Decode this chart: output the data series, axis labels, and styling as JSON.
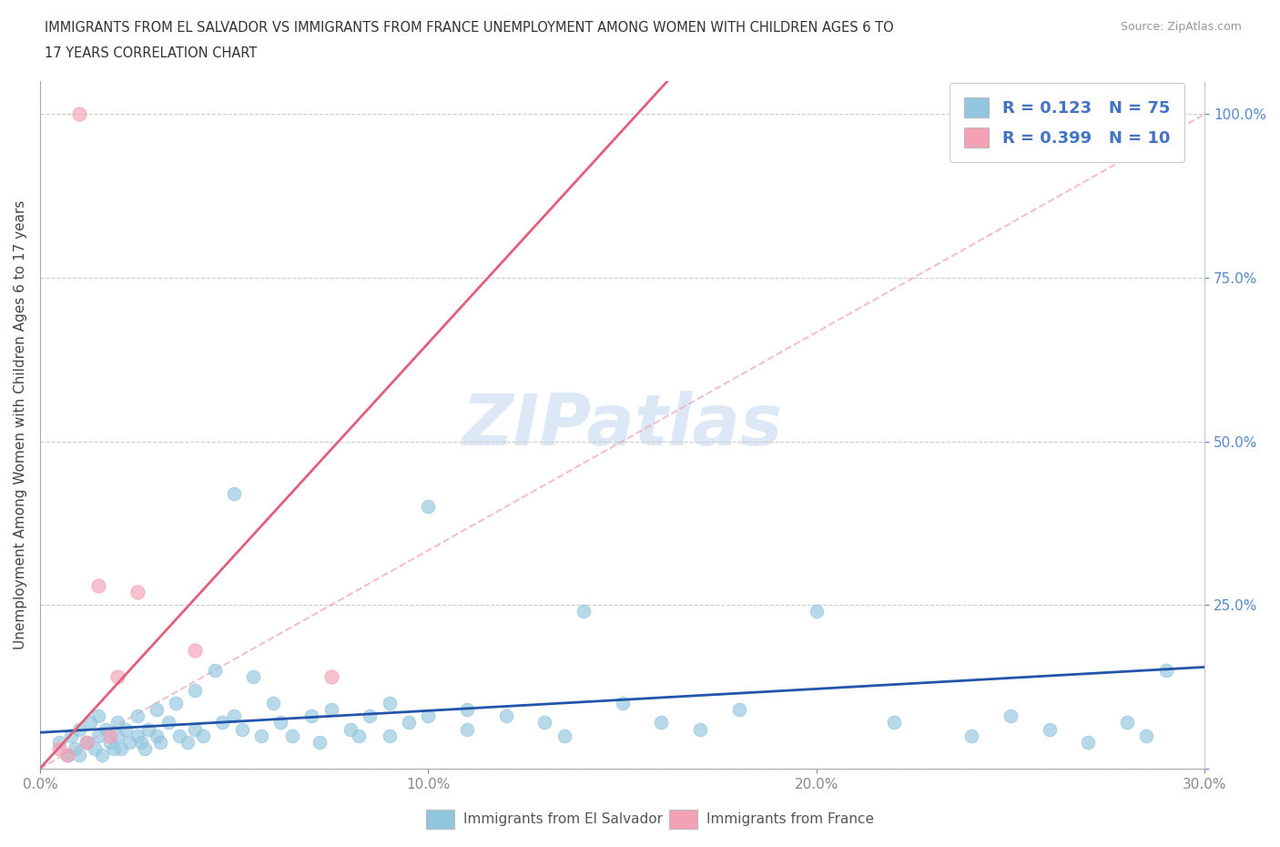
{
  "title_line1": "IMMIGRANTS FROM EL SALVADOR VS IMMIGRANTS FROM FRANCE UNEMPLOYMENT AMONG WOMEN WITH CHILDREN AGES 6 TO",
  "title_line2": "17 YEARS CORRELATION CHART",
  "source": "Source: ZipAtlas.com",
  "ylabel": "Unemployment Among Women with Children Ages 6 to 17 years",
  "xlim": [
    0.0,
    0.3
  ],
  "ylim": [
    0.0,
    1.05
  ],
  "xticks": [
    0.0,
    0.1,
    0.2,
    0.3
  ],
  "xticklabels": [
    "0.0%",
    "10.0%",
    "20.0%",
    "30.0%"
  ],
  "yticks": [
    0.0,
    0.25,
    0.5,
    0.75,
    1.0
  ],
  "yticklabels": [
    "",
    "25.0%",
    "50.0%",
    "75.0%",
    "100.0%"
  ],
  "R_blue": 0.123,
  "N_blue": 75,
  "R_pink": 0.399,
  "N_pink": 10,
  "blue_color": "#92C5DE",
  "pink_color": "#F4A0B5",
  "blue_line_color": "#2255AA",
  "pink_line_color": "#E0607A",
  "ref_line_color": "#F0B0C0",
  "tick_color_y": "#5588CC",
  "tick_color_x": "#888888",
  "watermark_color": "#DCE8F5",
  "legend_label_blue": "Immigrants from El Salvador",
  "legend_label_pink": "Immigrants from France",
  "blue_scatter_x": [
    0.005,
    0.007,
    0.008,
    0.009,
    0.01,
    0.01,
    0.012,
    0.013,
    0.014,
    0.015,
    0.015,
    0.016,
    0.017,
    0.018,
    0.019,
    0.02,
    0.02,
    0.021,
    0.022,
    0.023,
    0.025,
    0.025,
    0.026,
    0.027,
    0.028,
    0.03,
    0.03,
    0.031,
    0.033,
    0.035,
    0.036,
    0.038,
    0.04,
    0.04,
    0.042,
    0.045,
    0.047,
    0.05,
    0.05,
    0.052,
    0.055,
    0.057,
    0.06,
    0.062,
    0.065,
    0.07,
    0.072,
    0.075,
    0.08,
    0.082,
    0.085,
    0.09,
    0.09,
    0.095,
    0.1,
    0.1,
    0.11,
    0.11,
    0.12,
    0.13,
    0.135,
    0.14,
    0.15,
    0.16,
    0.17,
    0.18,
    0.2,
    0.22,
    0.24,
    0.25,
    0.26,
    0.27,
    0.28,
    0.285,
    0.29
  ],
  "blue_scatter_y": [
    0.04,
    0.02,
    0.05,
    0.03,
    0.06,
    0.02,
    0.04,
    0.07,
    0.03,
    0.05,
    0.08,
    0.02,
    0.06,
    0.04,
    0.03,
    0.07,
    0.05,
    0.03,
    0.06,
    0.04,
    0.08,
    0.05,
    0.04,
    0.03,
    0.06,
    0.05,
    0.09,
    0.04,
    0.07,
    0.1,
    0.05,
    0.04,
    0.12,
    0.06,
    0.05,
    0.15,
    0.07,
    0.42,
    0.08,
    0.06,
    0.14,
    0.05,
    0.1,
    0.07,
    0.05,
    0.08,
    0.04,
    0.09,
    0.06,
    0.05,
    0.08,
    0.1,
    0.05,
    0.07,
    0.4,
    0.08,
    0.09,
    0.06,
    0.08,
    0.07,
    0.05,
    0.24,
    0.1,
    0.07,
    0.06,
    0.09,
    0.24,
    0.07,
    0.05,
    0.08,
    0.06,
    0.04,
    0.07,
    0.05,
    0.15
  ],
  "pink_scatter_x": [
    0.005,
    0.007,
    0.01,
    0.012,
    0.015,
    0.018,
    0.02,
    0.025,
    0.04,
    0.075
  ],
  "pink_scatter_y": [
    0.03,
    0.02,
    1.0,
    0.04,
    0.28,
    0.05,
    0.14,
    0.27,
    0.18,
    0.14
  ]
}
